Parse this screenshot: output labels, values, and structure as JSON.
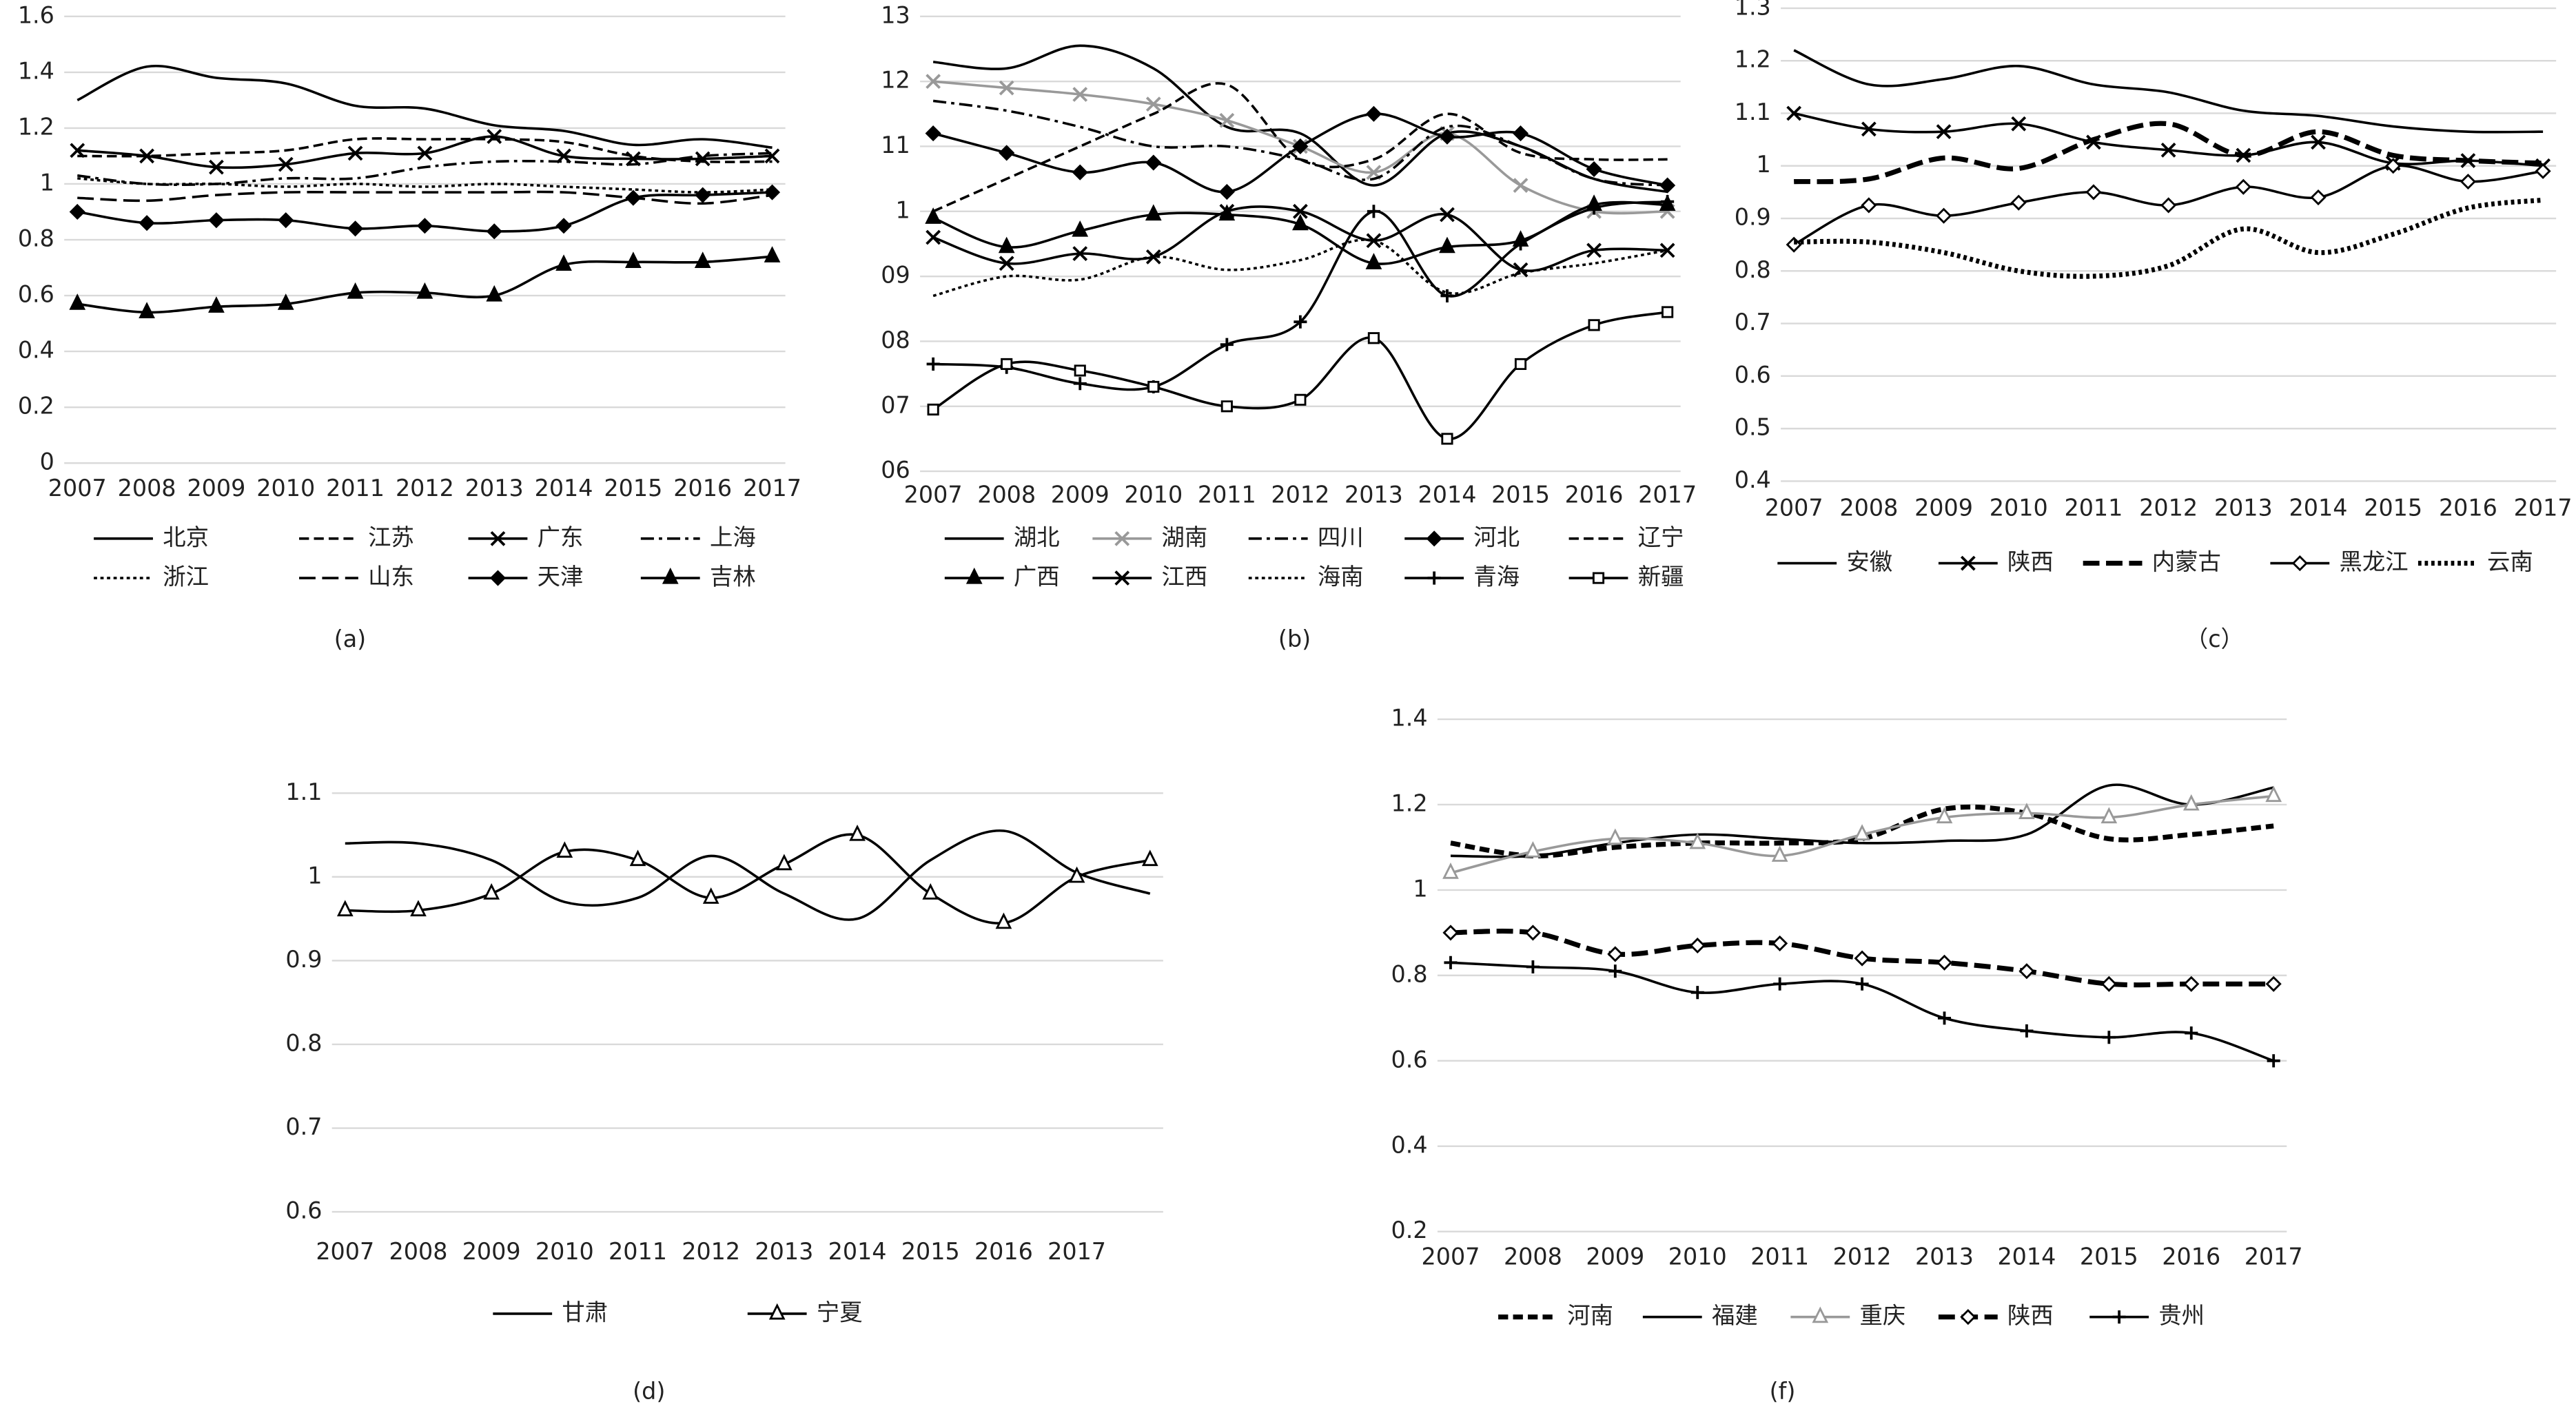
{
  "chart_data": [
    {
      "type": "line",
      "caption": "(a)",
      "categories": [
        "2007",
        "2008",
        "2009",
        "2010",
        "2011",
        "2012",
        "2013",
        "2014",
        "2015",
        "2016",
        "2017"
      ],
      "ylim": [
        0,
        1.6
      ],
      "yticks": [
        0,
        0.2,
        0.4,
        0.6,
        0.8,
        1,
        1.2,
        1.4,
        1.6
      ],
      "grid": true,
      "series": [
        {
          "name": "北京",
          "color": "#000000",
          "dash": "solid",
          "marker": "none",
          "values": [
            1.3,
            1.42,
            1.38,
            1.36,
            1.28,
            1.27,
            1.21,
            1.19,
            1.14,
            1.16,
            1.13
          ]
        },
        {
          "name": "江苏",
          "color": "#000000",
          "dash": "dashed",
          "marker": "none",
          "values": [
            1.1,
            1.1,
            1.11,
            1.12,
            1.16,
            1.16,
            1.16,
            1.15,
            1.1,
            1.08,
            1.08
          ]
        },
        {
          "name": "广东",
          "color": "#000000",
          "dash": "solid",
          "marker": "x",
          "values": [
            1.12,
            1.1,
            1.06,
            1.07,
            1.11,
            1.11,
            1.17,
            1.1,
            1.09,
            1.09,
            1.1
          ]
        },
        {
          "name": "上海",
          "color": "#000000",
          "dash": "dashdot",
          "marker": "none",
          "values": [
            1.03,
            1.0,
            1.0,
            1.02,
            1.02,
            1.06,
            1.08,
            1.08,
            1.07,
            1.1,
            1.11
          ]
        },
        {
          "name": "浙江",
          "color": "#000000",
          "dash": "dotted",
          "marker": "none",
          "values": [
            1.02,
            1.0,
            1.0,
            0.99,
            1.0,
            0.99,
            1.0,
            0.99,
            0.98,
            0.97,
            0.98
          ]
        },
        {
          "name": "山东",
          "color": "#000000",
          "dash": "longdash",
          "marker": "none",
          "values": [
            0.95,
            0.94,
            0.96,
            0.97,
            0.97,
            0.97,
            0.97,
            0.97,
            0.95,
            0.93,
            0.96
          ]
        },
        {
          "name": "天津",
          "color": "#000000",
          "dash": "solid",
          "marker": "diamond",
          "values": [
            0.9,
            0.86,
            0.87,
            0.87,
            0.84,
            0.85,
            0.83,
            0.85,
            0.95,
            0.96,
            0.97
          ]
        },
        {
          "name": "吉林",
          "color": "#000000",
          "dash": "solid",
          "marker": "triangle",
          "values": [
            0.57,
            0.54,
            0.56,
            0.57,
            0.61,
            0.61,
            0.6,
            0.71,
            0.72,
            0.72,
            0.74
          ]
        }
      ]
    },
    {
      "type": "line",
      "caption": "(b)",
      "categories": [
        "2007",
        "2008",
        "2009",
        "2010",
        "2011",
        "2012",
        "2013",
        "2014",
        "2015",
        "2016",
        "2017"
      ],
      "ylim": [
        0.6,
        1.3
      ],
      "yticks": [
        {
          "value": 0.6,
          "label": "06"
        },
        {
          "value": 0.7,
          "label": "07"
        },
        {
          "value": 0.8,
          "label": "08"
        },
        {
          "value": 0.9,
          "label": "09"
        },
        1,
        {
          "value": 1.1,
          "label": "11"
        },
        {
          "value": 1.2,
          "label": "12"
        },
        {
          "value": 1.3,
          "label": "13"
        }
      ],
      "grid": true,
      "series": [
        {
          "name": "湖北",
          "color": "#000000",
          "dash": "solid",
          "marker": "none",
          "values": [
            1.23,
            1.22,
            1.255,
            1.22,
            1.13,
            1.12,
            1.04,
            1.12,
            1.1,
            1.05,
            1.03
          ]
        },
        {
          "name": "湖南",
          "color": "#999999",
          "dash": "solid",
          "marker": "x",
          "values": [
            1.2,
            1.19,
            1.18,
            1.165,
            1.14,
            1.1,
            1.06,
            1.12,
            1.04,
            1.0,
            1.0
          ]
        },
        {
          "name": "四川",
          "color": "#000000",
          "dash": "dashdot",
          "marker": "none",
          "values": [
            1.17,
            1.155,
            1.13,
            1.1,
            1.1,
            1.08,
            1.05,
            1.13,
            1.1,
            1.05,
            1.04
          ]
        },
        {
          "name": "河北",
          "color": "#000000",
          "dash": "solid",
          "marker": "diamond",
          "values": [
            1.12,
            1.09,
            1.06,
            1.075,
            1.03,
            1.1,
            1.15,
            1.115,
            1.12,
            1.065,
            1.04
          ]
        },
        {
          "name": "辽宁",
          "color": "#000000",
          "dash": "dashed",
          "marker": "none",
          "values": [
            1.0,
            1.05,
            1.1,
            1.15,
            1.195,
            1.08,
            1.08,
            1.15,
            1.09,
            1.08,
            1.08
          ]
        },
        {
          "name": "广西",
          "color": "#000000",
          "dash": "solid",
          "marker": "triangle",
          "values": [
            0.99,
            0.945,
            0.97,
            0.995,
            0.995,
            0.98,
            0.92,
            0.945,
            0.955,
            1.01,
            1.01
          ]
        },
        {
          "name": "江西",
          "color": "#000000",
          "dash": "solid",
          "marker": "x",
          "values": [
            0.96,
            0.92,
            0.935,
            0.93,
            1.0,
            1.0,
            0.955,
            0.995,
            0.91,
            0.94,
            0.94
          ]
        },
        {
          "name": "海南",
          "color": "#000000",
          "dash": "dotted",
          "marker": "none",
          "values": [
            0.87,
            0.9,
            0.895,
            0.93,
            0.91,
            0.925,
            0.955,
            0.875,
            0.905,
            0.92,
            0.94
          ]
        },
        {
          "name": "青海",
          "color": "#000000",
          "dash": "solid",
          "marker": "plus",
          "values": [
            0.765,
            0.76,
            0.735,
            0.73,
            0.795,
            0.83,
            1.0,
            0.87,
            0.95,
            1.005,
            1.015
          ]
        },
        {
          "name": "新疆",
          "color": "#000000",
          "dash": "solid",
          "marker": "square-open",
          "values": [
            0.695,
            0.765,
            0.755,
            0.73,
            0.7,
            0.71,
            0.805,
            0.65,
            0.765,
            0.825,
            0.845
          ]
        }
      ]
    },
    {
      "type": "line",
      "caption": "（c）",
      "categories": [
        "2007",
        "2008",
        "2009",
        "2010",
        "2011",
        "2012",
        "2013",
        "2014",
        "2015",
        "2016",
        "2017"
      ],
      "ylim": [
        0.4,
        1.3
      ],
      "yticks": [
        0.4,
        0.5,
        0.6,
        0.7,
        0.8,
        0.9,
        1,
        1.1,
        1.2,
        1.3
      ],
      "grid": true,
      "series": [
        {
          "name": "安徽",
          "color": "#000000",
          "dash": "solid",
          "marker": "none",
          "values": [
            1.22,
            1.155,
            1.165,
            1.19,
            1.155,
            1.14,
            1.105,
            1.095,
            1.075,
            1.065,
            1.065
          ]
        },
        {
          "name": "陕西",
          "color": "#000000",
          "dash": "solid",
          "marker": "x",
          "values": [
            1.1,
            1.07,
            1.065,
            1.08,
            1.045,
            1.03,
            1.02,
            1.045,
            1.005,
            1.01,
            1.0
          ]
        },
        {
          "name": "内蒙古",
          "color": "#000000",
          "dash": "longdash",
          "width": 3,
          "marker": "none",
          "values": [
            0.97,
            0.975,
            1.015,
            0.995,
            1.05,
            1.08,
            1.02,
            1.065,
            1.02,
            1.01,
            1.005
          ]
        },
        {
          "name": "黑龙江",
          "color": "#000000",
          "dash": "solid",
          "marker": "diamond-open",
          "values": [
            0.85,
            0.925,
            0.905,
            0.93,
            0.95,
            0.925,
            0.96,
            0.94,
            1.0,
            0.97,
            0.99
          ]
        },
        {
          "name": "云南",
          "color": "#000000",
          "dash": "dotted",
          "width": 3,
          "marker": "none",
          "values": [
            0.855,
            0.855,
            0.835,
            0.8,
            0.79,
            0.81,
            0.88,
            0.835,
            0.87,
            0.92,
            0.935
          ]
        }
      ]
    },
    {
      "type": "line",
      "caption": "(d)",
      "categories": [
        "2007",
        "2008",
        "2009",
        "2010",
        "2011",
        "2012",
        "2013",
        "2014",
        "2015",
        "2016",
        "2017",
        null
      ],
      "ylim": [
        0.6,
        1.1
      ],
      "yticks": [
        0.6,
        0.7,
        0.8,
        0.9,
        1,
        1.1
      ],
      "grid": true,
      "series": [
        {
          "name": "甘肃",
          "color": "#000000",
          "dash": "solid",
          "marker": "none",
          "values": [
            1.04,
            1.04,
            1.02,
            0.97,
            0.975,
            1.025,
            0.98,
            0.95,
            1.02,
            1.055,
            1.005,
            0.98
          ]
        },
        {
          "name": "宁夏",
          "color": "#000000",
          "dash": "solid",
          "marker": "triangle-open",
          "values": [
            0.96,
            0.96,
            0.98,
            1.03,
            1.02,
            0.975,
            1.015,
            1.05,
            0.98,
            0.945,
            1.0,
            1.02
          ]
        }
      ]
    },
    {
      "type": "line",
      "caption": "(f)",
      "categories": [
        "2007",
        "2008",
        "2009",
        "2010",
        "2011",
        "2012",
        "2013",
        "2014",
        "2015",
        "2016",
        "2017"
      ],
      "ylim": [
        0.2,
        1.4
      ],
      "yticks": [
        0.2,
        0.4,
        0.6,
        0.8,
        1,
        1.2,
        1.4
      ],
      "grid": true,
      "series": [
        {
          "name": "河南",
          "color": "#000000",
          "dash": "dashed",
          "width": 3,
          "marker": "none",
          "values": [
            1.11,
            1.08,
            1.1,
            1.11,
            1.11,
            1.12,
            1.19,
            1.18,
            1.12,
            1.13,
            1.15
          ]
        },
        {
          "name": "福建",
          "color": "#000000",
          "dash": "solid",
          "marker": "none",
          "values": [
            1.08,
            1.08,
            1.11,
            1.13,
            1.12,
            1.11,
            1.115,
            1.13,
            1.245,
            1.2,
            1.24
          ]
        },
        {
          "name": "重庆",
          "color": "#999999",
          "dash": "solid",
          "marker": "triangle-open",
          "values": [
            1.04,
            1.09,
            1.12,
            1.11,
            1.08,
            1.13,
            1.17,
            1.18,
            1.17,
            1.2,
            1.22
          ]
        },
        {
          "name": "陕西",
          "color": "#000000",
          "dash": "longdash",
          "width": 3,
          "marker": "diamond-open",
          "values": [
            0.9,
            0.9,
            0.85,
            0.87,
            0.875,
            0.84,
            0.83,
            0.81,
            0.78,
            0.78,
            0.78
          ]
        },
        {
          "name": "贵州",
          "color": "#000000",
          "dash": "solid",
          "marker": "plus",
          "values": [
            0.83,
            0.82,
            0.81,
            0.76,
            0.78,
            0.78,
            0.7,
            0.67,
            0.655,
            0.665,
            0.6
          ]
        }
      ]
    }
  ]
}
